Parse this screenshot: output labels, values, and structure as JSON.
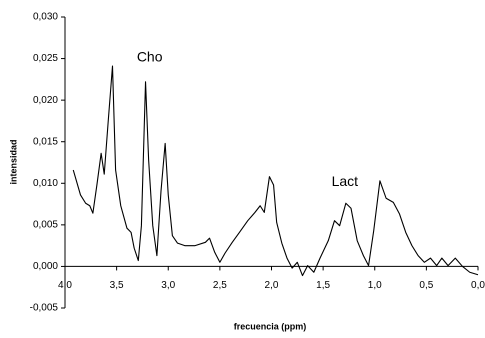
{
  "chart_data": {
    "type": "line",
    "xlabel": "frecuencia (ppm)",
    "ylabel": "intensidad",
    "xlim": [
      4.0,
      0.0
    ],
    "ylim": [
      -0.005,
      0.03
    ],
    "xticks": [
      {
        "value": 4.0,
        "label": "4,0"
      },
      {
        "value": 3.5,
        "label": "3,5"
      },
      {
        "value": 3.0,
        "label": "3,0"
      },
      {
        "value": 2.5,
        "label": "2,5"
      },
      {
        "value": 2.0,
        "label": "2,0"
      },
      {
        "value": 1.5,
        "label": "1,5"
      },
      {
        "value": 1.0,
        "label": "1,0"
      },
      {
        "value": 0.5,
        "label": "0,5"
      },
      {
        "value": 0.0,
        "label": "0,0"
      }
    ],
    "yticks": [
      {
        "value": -0.005,
        "label": "-0,005"
      },
      {
        "value": 0.0,
        "label": "0,000"
      },
      {
        "value": 0.005,
        "label": "0,005"
      },
      {
        "value": 0.01,
        "label": "0,010"
      },
      {
        "value": 0.015,
        "label": "0,015"
      },
      {
        "value": 0.02,
        "label": "0,020"
      },
      {
        "value": 0.025,
        "label": "0,025"
      },
      {
        "value": 0.03,
        "label": "0,030"
      }
    ],
    "annotations": [
      {
        "text": "Cho",
        "x": 3.18,
        "y": 0.0251
      },
      {
        "text": "Lact",
        "x": 1.29,
        "y": 0.0101
      }
    ],
    "series": [
      {
        "color": "#000000",
        "x": [
          3.92,
          3.85,
          3.8,
          3.76,
          3.73,
          3.69,
          3.65,
          3.62,
          3.58,
          3.54,
          3.51,
          3.46,
          3.4,
          3.36,
          3.33,
          3.29,
          3.26,
          3.22,
          3.19,
          3.15,
          3.11,
          3.07,
          3.03,
          3.0,
          2.96,
          2.91,
          2.84,
          2.74,
          2.64,
          2.6,
          2.55,
          2.5,
          2.45,
          2.38,
          2.31,
          2.23,
          2.16,
          2.11,
          2.07,
          2.02,
          1.98,
          1.95,
          1.9,
          1.85,
          1.8,
          1.75,
          1.7,
          1.65,
          1.59,
          1.53,
          1.45,
          1.39,
          1.34,
          1.28,
          1.23,
          1.17,
          1.11,
          1.06,
          1.01,
          0.95,
          0.89,
          0.82,
          0.76,
          0.7,
          0.64,
          0.58,
          0.52,
          0.46,
          0.4,
          0.35,
          0.29,
          0.22,
          0.15,
          0.08,
          0.0
        ],
        "values": [
          0.0116,
          0.0086,
          0.0076,
          0.0073,
          0.0064,
          0.0099,
          0.0136,
          0.0111,
          0.0177,
          0.0241,
          0.0116,
          0.0073,
          0.0046,
          0.0041,
          0.0022,
          0.0007,
          0.0049,
          0.0222,
          0.0128,
          0.0049,
          0.0013,
          0.0091,
          0.0148,
          0.0086,
          0.0037,
          0.0028,
          0.0025,
          0.0025,
          0.0029,
          0.0034,
          0.0017,
          0.0005,
          0.0016,
          0.0029,
          0.0041,
          0.0055,
          0.0065,
          0.0073,
          0.0065,
          0.0108,
          0.0098,
          0.0053,
          0.0028,
          0.001,
          -0.0002,
          0.0005,
          -0.0011,
          0.0001,
          -0.0007,
          0.001,
          0.0031,
          0.0055,
          0.0049,
          0.0076,
          0.007,
          0.0031,
          0.0013,
          0.0001,
          0.0043,
          0.0103,
          0.0082,
          0.0077,
          0.0063,
          0.0041,
          0.0025,
          0.0013,
          0.0005,
          0.001,
          0.0001,
          0.001,
          0.0001,
          0.001,
          0.0,
          -0.0007,
          -0.001
        ]
      }
    ]
  }
}
